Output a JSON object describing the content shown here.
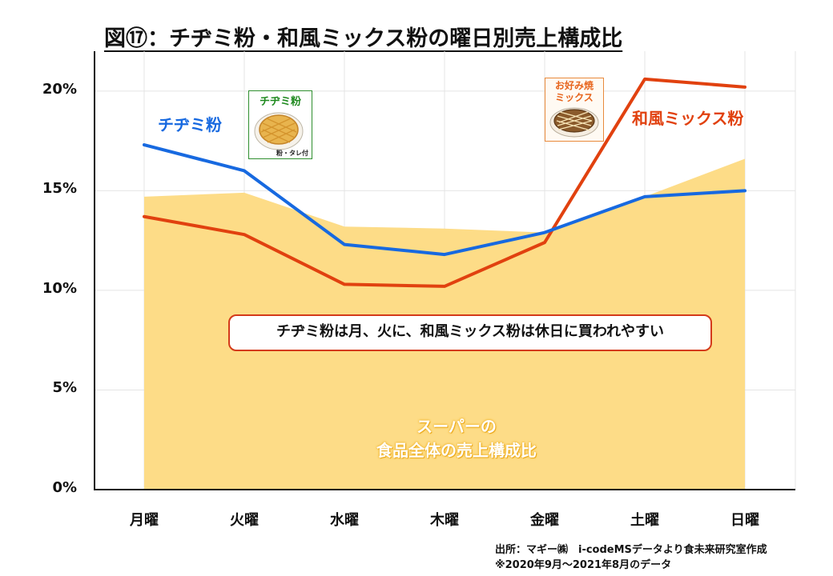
{
  "title": "図⑰：チヂミ粉・和風ミックス粉の曜日別売上構成比",
  "callout_text": "チヂミ粉は月、火に、和風ミックス粉は休日に買われやすい",
  "area_label_line1": "スーパーの",
  "area_label_line2": "食品全体の売上構成比",
  "product_chijimi": {
    "title": "チヂミ粉",
    "sub": "粉・タレ付"
  },
  "product_wafu": {
    "title": "お好み焼ミックス"
  },
  "source_line1": "出所：マギー㈱　i-codeMSデータより食未来研究室作成",
  "source_line2": "※2020年9月～2021年8月のデータ",
  "colors": {
    "chijimi": "#1769e0",
    "wafu": "#e1410f",
    "area": "#fddc87",
    "grid": "#e4e4e4"
  },
  "chart_data": {
    "type": "line",
    "title": "図⑰：チヂミ粉・和風ミックス粉の曜日別売上構成比",
    "categories": [
      "月曜",
      "火曜",
      "水曜",
      "木曜",
      "金曜",
      "土曜",
      "日曜"
    ],
    "ylim": [
      0,
      22
    ],
    "yticks": [
      0,
      5,
      10,
      15,
      20
    ],
    "ytick_labels": [
      "0%",
      "5%",
      "10%",
      "15%",
      "20%"
    ],
    "grid": true,
    "series": [
      {
        "name": "チヂミ粉",
        "type": "line",
        "values": [
          17.3,
          16.0,
          12.3,
          11.8,
          12.9,
          14.7,
          15.0
        ]
      },
      {
        "name": "和風ミックス粉",
        "type": "line",
        "values": [
          13.7,
          12.8,
          10.3,
          10.2,
          12.4,
          20.6,
          20.2
        ]
      },
      {
        "name": "スーパーの食品全体の売上構成比",
        "type": "area",
        "values": [
          14.7,
          14.9,
          13.2,
          13.1,
          12.9,
          14.7,
          16.6
        ]
      }
    ]
  }
}
